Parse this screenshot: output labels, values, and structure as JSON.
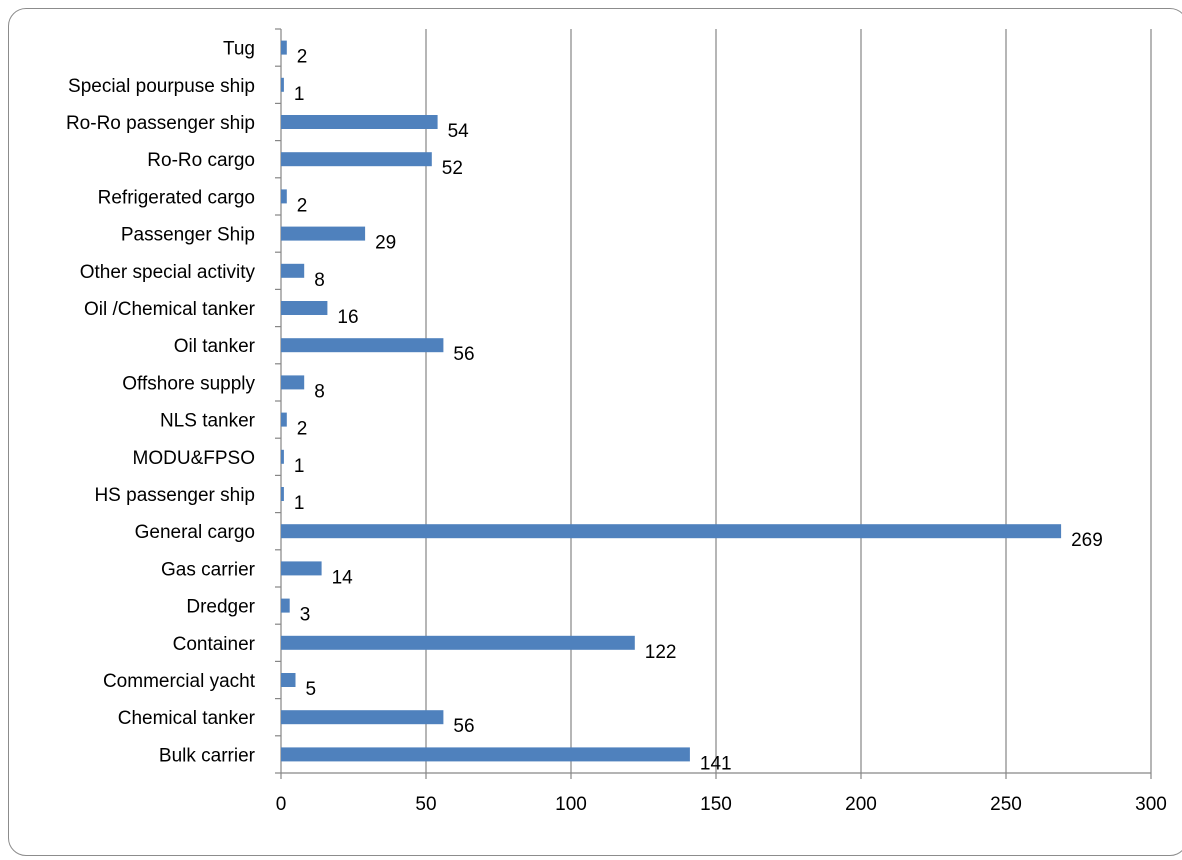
{
  "chart_data": {
    "type": "bar",
    "orientation": "horizontal",
    "title": "",
    "xlabel": "",
    "ylabel": "",
    "xlim": [
      0,
      300
    ],
    "xticks": [
      0,
      50,
      100,
      150,
      200,
      250,
      300
    ],
    "grid": "vertical",
    "legend": "none",
    "bar_color": "#4F81BD",
    "categories": [
      "Bulk carrier",
      "Chemical tanker",
      "Commercial yacht",
      "Container",
      "Dredger",
      "Gas carrier",
      "General cargo",
      "HS passenger ship",
      "MODU&FPSO",
      "NLS tanker",
      "Offshore supply",
      "Oil tanker",
      "Oil /Chemical tanker",
      "Other special activity",
      "Passenger Ship",
      "Refrigerated cargo",
      "Ro-Ro cargo",
      "Ro-Ro passenger ship",
      "Special pourpuse ship",
      "Tug"
    ],
    "values": [
      141,
      56,
      5,
      122,
      3,
      14,
      269,
      1,
      1,
      2,
      8,
      56,
      16,
      8,
      29,
      2,
      52,
      54,
      1,
      2
    ]
  }
}
